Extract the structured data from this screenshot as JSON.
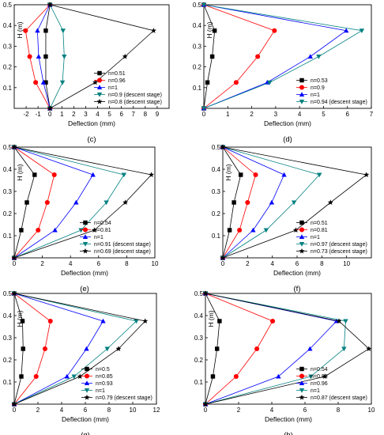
{
  "chart_data": [
    {
      "panel": "(c)",
      "type": "line",
      "xlabel": "Deflection (mm)",
      "ylabel": "H (m)",
      "xlim": [
        -3,
        10
      ],
      "ylim": [
        0,
        0.5
      ],
      "xticks": [
        -2,
        -1,
        0,
        1,
        2,
        3,
        4,
        5,
        6,
        7,
        8,
        9
      ],
      "yticks": [
        0.1,
        0.2,
        0.3,
        0.4,
        0.5
      ],
      "legend_position": "bottom-right",
      "series": [
        {
          "name": "n=0.51",
          "color": "#000000",
          "marker": "square",
          "points": [
            [
              0,
              0
            ],
            [
              -0.35,
              0.125
            ],
            [
              -0.35,
              0.25
            ],
            [
              -0.35,
              0.375
            ],
            [
              0,
              0.5
            ]
          ]
        },
        {
          "name": "n=0.96",
          "color": "#ff0000",
          "marker": "circle",
          "points": [
            [
              0,
              0
            ],
            [
              -1.2,
              0.125
            ],
            [
              -1.7,
              0.25
            ],
            [
              -2.05,
              0.375
            ],
            [
              0,
              0.5
            ]
          ]
        },
        {
          "name": "n=1",
          "color": "#0000ff",
          "marker": "triangle-up",
          "points": [
            [
              0,
              0
            ],
            [
              -0.55,
              0.125
            ],
            [
              -0.95,
              0.25
            ],
            [
              -1.05,
              0.375
            ],
            [
              0,
              0.5
            ]
          ]
        },
        {
          "name": "n=0.9 (descent stage)",
          "color": "#008080",
          "marker": "triangle-down",
          "points": [
            [
              0,
              0
            ],
            [
              1.05,
              0.125
            ],
            [
              1.2,
              0.25
            ],
            [
              1.1,
              0.375
            ],
            [
              0,
              0.5
            ]
          ]
        },
        {
          "name": "n=0.8 (descent stage)",
          "color": "#000000",
          "marker": "star",
          "points": [
            [
              0,
              0
            ],
            [
              3.8,
              0.125
            ],
            [
              6.3,
              0.25
            ],
            [
              8.7,
              0.375
            ],
            [
              0,
              0.5
            ]
          ]
        }
      ]
    },
    {
      "panel": "(d)",
      "type": "line",
      "xlabel": "Deflection (mm)",
      "ylabel": "H (m)",
      "xlim": [
        0,
        7
      ],
      "ylim": [
        0,
        0.5
      ],
      "xticks": [
        0,
        1,
        2,
        3,
        4,
        5,
        6,
        7
      ],
      "yticks": [
        0.1,
        0.2,
        0.3,
        0.4,
        0.5
      ],
      "legend_position": "bottom-right",
      "series": [
        {
          "name": "n=0.53",
          "color": "#000000",
          "marker": "square",
          "points": [
            [
              0,
              0
            ],
            [
              0.15,
              0.125
            ],
            [
              0.35,
              0.25
            ],
            [
              0.45,
              0.375
            ],
            [
              0,
              0.5
            ]
          ]
        },
        {
          "name": "n=0.9",
          "color": "#ff0000",
          "marker": "circle",
          "points": [
            [
              0,
              0
            ],
            [
              1.35,
              0.125
            ],
            [
              2.25,
              0.25
            ],
            [
              2.95,
              0.375
            ],
            [
              0,
              0.5
            ]
          ]
        },
        {
          "name": "n=1",
          "color": "#0000ff",
          "marker": "triangle-up",
          "points": [
            [
              0,
              0
            ],
            [
              2.65,
              0.125
            ],
            [
              4.45,
              0.25
            ],
            [
              5.95,
              0.375
            ],
            [
              0,
              0.5
            ]
          ]
        },
        {
          "name": "n=0.94 (descent stage)",
          "color": "#008080",
          "marker": "triangle-down",
          "points": [
            [
              0,
              0
            ],
            [
              2.75,
              0.125
            ],
            [
              4.8,
              0.25
            ],
            [
              6.6,
              0.375
            ],
            [
              0,
              0.5
            ]
          ]
        }
      ]
    },
    {
      "panel": "(e)",
      "type": "line",
      "xlabel": "Deflection (mm)",
      "ylabel": "H (m)",
      "xlim": [
        0,
        10
      ],
      "ylim": [
        0,
        0.5
      ],
      "xticks": [
        0,
        2,
        4,
        6,
        8,
        10
      ],
      "yticks": [
        0.1,
        0.2,
        0.3,
        0.4,
        0.5
      ],
      "legend_position": "bottom-right",
      "series": [
        {
          "name": "n=0.54",
          "color": "#000000",
          "marker": "square",
          "points": [
            [
              0,
              0
            ],
            [
              0.5,
              0.125
            ],
            [
              0.9,
              0.25
            ],
            [
              1.45,
              0.375
            ],
            [
              0,
              0.5
            ]
          ]
        },
        {
          "name": "n=0.81",
          "color": "#ff0000",
          "marker": "circle",
          "points": [
            [
              0,
              0
            ],
            [
              1.7,
              0.125
            ],
            [
              2.35,
              0.25
            ],
            [
              2.85,
              0.375
            ],
            [
              0,
              0.5
            ]
          ]
        },
        {
          "name": "n=1",
          "color": "#0000ff",
          "marker": "triangle-up",
          "points": [
            [
              0,
              0
            ],
            [
              2.9,
              0.125
            ],
            [
              4.4,
              0.25
            ],
            [
              5.6,
              0.375
            ],
            [
              0,
              0.5
            ]
          ]
        },
        {
          "name": "n=0.91 (descent stage)",
          "color": "#008080",
          "marker": "triangle-down",
          "points": [
            [
              0,
              0
            ],
            [
              4.75,
              0.125
            ],
            [
              6.55,
              0.25
            ],
            [
              7.8,
              0.375
            ],
            [
              0,
              0.5
            ]
          ]
        },
        {
          "name": "n=0.69 (descent stage)",
          "color": "#000000",
          "marker": "star",
          "points": [
            [
              0,
              0
            ],
            [
              5.7,
              0.125
            ],
            [
              7.9,
              0.25
            ],
            [
              9.75,
              0.375
            ],
            [
              0,
              0.5
            ]
          ]
        }
      ]
    },
    {
      "panel": "(f)",
      "type": "line",
      "xlabel": "Deflection (mm)",
      "ylabel": "H (m)",
      "xlim": [
        0,
        12
      ],
      "ylim": [
        0,
        0.5
      ],
      "xticks": [
        0,
        2,
        4,
        6,
        8,
        10
      ],
      "yticks": [
        0.1,
        0.2,
        0.3,
        0.4,
        0.5
      ],
      "legend_position": "bottom-right",
      "series": [
        {
          "name": "n=0.51",
          "color": "#000000",
          "marker": "square",
          "points": [
            [
              0,
              0
            ],
            [
              0.55,
              0.125
            ],
            [
              0.9,
              0.25
            ],
            [
              1.45,
              0.375
            ],
            [
              0,
              0.5
            ]
          ]
        },
        {
          "name": "n=0.81",
          "color": "#ff0000",
          "marker": "circle",
          "points": [
            [
              0,
              0
            ],
            [
              1.35,
              0.125
            ],
            [
              2.0,
              0.25
            ],
            [
              2.65,
              0.375
            ],
            [
              0,
              0.5
            ]
          ]
        },
        {
          "name": "n=1",
          "color": "#0000ff",
          "marker": "triangle-up",
          "points": [
            [
              0,
              0
            ],
            [
              2.45,
              0.125
            ],
            [
              3.95,
              0.25
            ],
            [
              4.95,
              0.375
            ],
            [
              0,
              0.5
            ]
          ]
        },
        {
          "name": "n=0.97 (descent stage)",
          "color": "#008080",
          "marker": "triangle-down",
          "points": [
            [
              0,
              0
            ],
            [
              3.5,
              0.125
            ],
            [
              5.75,
              0.25
            ],
            [
              7.8,
              0.375
            ],
            [
              0,
              0.5
            ]
          ]
        },
        {
          "name": "n=0.73 (descent stage)",
          "color": "#000000",
          "marker": "star",
          "points": [
            [
              0,
              0
            ],
            [
              5.9,
              0.125
            ],
            [
              8.7,
              0.25
            ],
            [
              11.6,
              0.375
            ],
            [
              0,
              0.5
            ]
          ]
        }
      ]
    },
    {
      "panel": "(g)",
      "type": "line",
      "xlabel": "Deflection (mm)",
      "ylabel": "H (m)",
      "xlim": [
        0,
        12
      ],
      "ylim": [
        0,
        0.5
      ],
      "xticks": [
        0,
        2,
        4,
        6,
        8,
        10,
        12
      ],
      "yticks": [
        0.1,
        0.2,
        0.3,
        0.4,
        0.5
      ],
      "legend_position": "bottom-right",
      "series": [
        {
          "name": "n=0.5",
          "color": "#000000",
          "marker": "square",
          "points": [
            [
              0,
              0
            ],
            [
              0.6,
              0.125
            ],
            [
              0.75,
              0.25
            ],
            [
              0.7,
              0.375
            ],
            [
              0,
              0.5
            ]
          ]
        },
        {
          "name": "n=0.85",
          "color": "#ff0000",
          "marker": "circle",
          "points": [
            [
              0,
              0
            ],
            [
              1.85,
              0.125
            ],
            [
              2.6,
              0.25
            ],
            [
              3.05,
              0.375
            ],
            [
              0,
              0.5
            ]
          ]
        },
        {
          "name": "n=0.93",
          "color": "#0000ff",
          "marker": "triangle-up",
          "points": [
            [
              0,
              0
            ],
            [
              4.45,
              0.125
            ],
            [
              6.1,
              0.25
            ],
            [
              7.5,
              0.375
            ],
            [
              0,
              0.5
            ]
          ]
        },
        {
          "name": "n=1",
          "color": "#008080",
          "marker": "triangle-down",
          "points": [
            [
              0,
              0
            ],
            [
              5.05,
              0.125
            ],
            [
              7.85,
              0.25
            ],
            [
              10.3,
              0.375
            ],
            [
              0,
              0.5
            ]
          ]
        },
        {
          "name": "n=0.79 (descent stage)",
          "color": "#000000",
          "marker": "star",
          "points": [
            [
              0,
              0
            ],
            [
              5.55,
              0.125
            ],
            [
              8.8,
              0.25
            ],
            [
              11.05,
              0.375
            ],
            [
              0,
              0.5
            ]
          ]
        }
      ]
    },
    {
      "panel": "(h)",
      "type": "line",
      "xlabel": "Deflection (mm)",
      "ylabel": "H (m)",
      "xlim": [
        0,
        10
      ],
      "ylim": [
        0,
        0.5
      ],
      "xticks": [
        0,
        2,
        4,
        6,
        8,
        10
      ],
      "yticks": [
        0.1,
        0.2,
        0.3,
        0.4,
        0.5
      ],
      "legend_position": "bottom-right",
      "series": [
        {
          "name": "n=0.54",
          "color": "#000000",
          "marker": "square",
          "points": [
            [
              0,
              0
            ],
            [
              0.45,
              0.125
            ],
            [
              0.7,
              0.25
            ],
            [
              0.85,
              0.375
            ],
            [
              0,
              0.5
            ]
          ]
        },
        {
          "name": "n=0.88",
          "color": "#ff0000",
          "marker": "circle",
          "points": [
            [
              0,
              0
            ],
            [
              1.85,
              0.125
            ],
            [
              3.1,
              0.25
            ],
            [
              4.05,
              0.375
            ],
            [
              0,
              0.5
            ]
          ]
        },
        {
          "name": "n=0.96",
          "color": "#0000ff",
          "marker": "triangle-up",
          "points": [
            [
              0,
              0
            ],
            [
              4.4,
              0.125
            ],
            [
              6.3,
              0.25
            ],
            [
              7.9,
              0.375
            ],
            [
              0,
              0.5
            ]
          ]
        },
        {
          "name": "n=1",
          "color": "#008080",
          "marker": "triangle-down",
          "points": [
            [
              0,
              0
            ],
            [
              6.35,
              0.125
            ],
            [
              8.35,
              0.25
            ],
            [
              8.45,
              0.375
            ],
            [
              0,
              0.5
            ]
          ]
        },
        {
          "name": "n=0.87 (descent stage)",
          "color": "#000000",
          "marker": "star",
          "points": [
            [
              0,
              0
            ],
            [
              7.2,
              0.125
            ],
            [
              9.85,
              0.25
            ],
            [
              8.05,
              0.375
            ],
            [
              0,
              0.5
            ]
          ]
        }
      ]
    }
  ]
}
